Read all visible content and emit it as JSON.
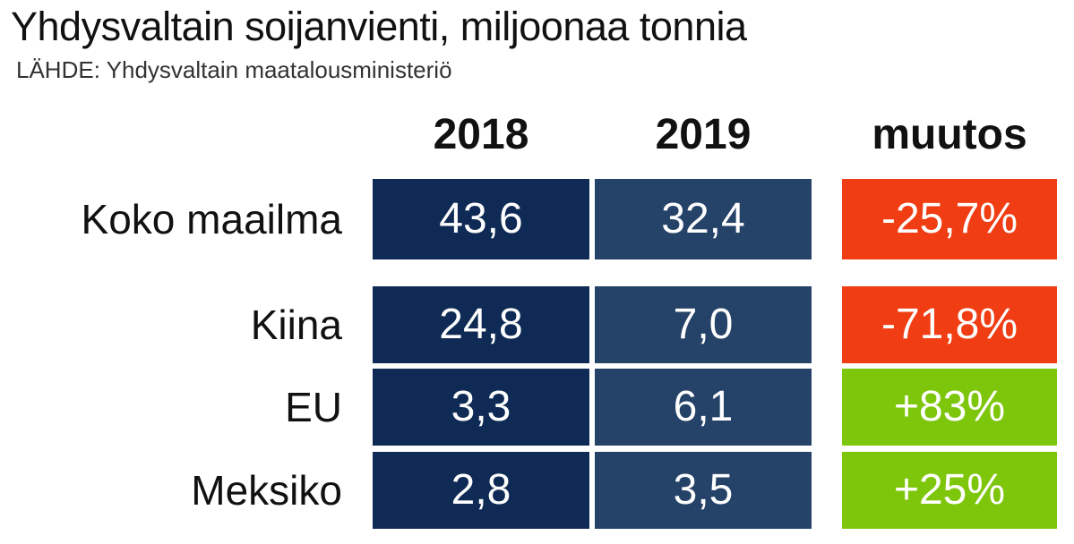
{
  "title": "Yhdysvaltain soijanvienti, miljoonaa tonnia",
  "source": "LÄHDE: Yhdysvaltain maatalousministeriö",
  "colors": {
    "col2018": "#0f2b55",
    "col2019": "#254368",
    "negative": "#f03d13",
    "positive": "#7ec60b"
  },
  "chart_data": {
    "type": "table",
    "title": "Yhdysvaltain soijanvienti, miljoonaa tonnia",
    "source": "LÄHDE: Yhdysvaltain maatalousministeriö",
    "columns": [
      "2018",
      "2019",
      "muutos"
    ],
    "rows": [
      {
        "label": "Koko maailma",
        "v2018": "43,6",
        "v2019": "32,4",
        "change": "-25,7%",
        "trend": "negative"
      },
      {
        "label": "Kiina",
        "v2018": "24,8",
        "v2019": "7,0",
        "change": "-71,8%",
        "trend": "negative"
      },
      {
        "label": "EU",
        "v2018": "3,3",
        "v2019": "6,1",
        "change": "+83%",
        "trend": "positive"
      },
      {
        "label": "Meksiko",
        "v2018": "2,8",
        "v2019": "3,5",
        "change": "+25%",
        "trend": "positive"
      }
    ]
  }
}
